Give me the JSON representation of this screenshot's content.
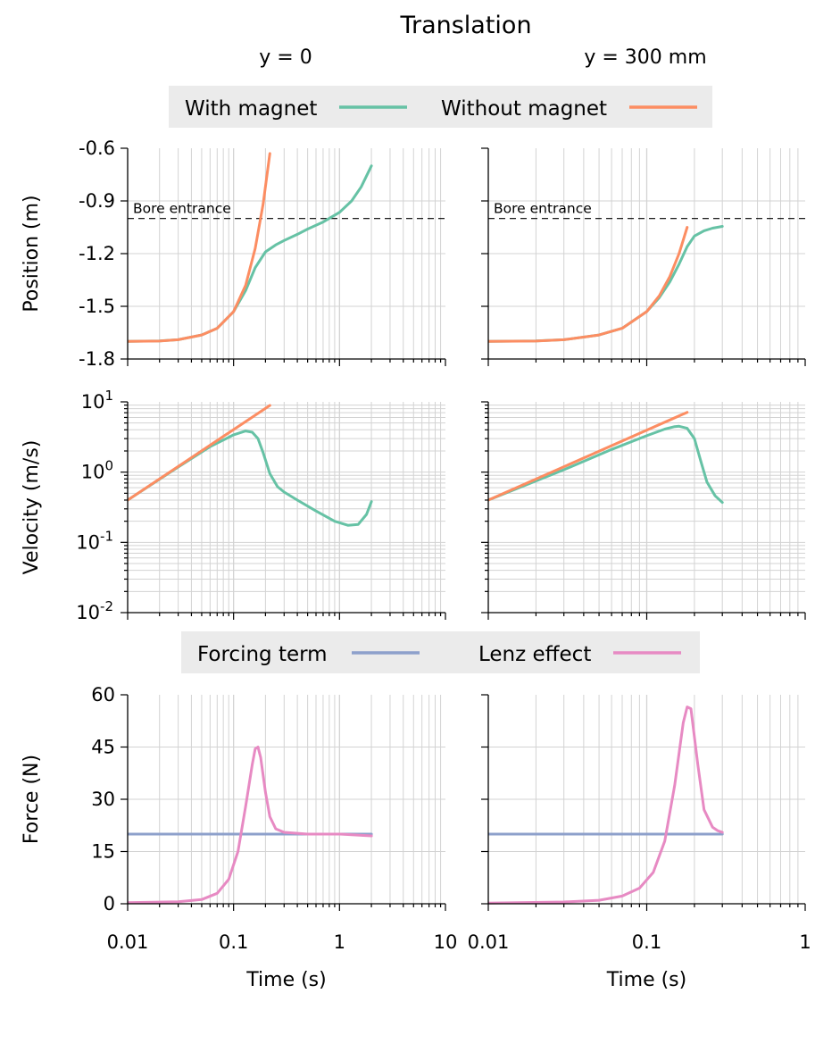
{
  "figure": {
    "title": "Translation",
    "column_titles": [
      "y = 0",
      "y = 300 mm"
    ],
    "legend_top": {
      "with_magnet": "With magnet",
      "without_magnet": "Without magnet"
    },
    "legend_bottom": {
      "forcing": "Forcing term",
      "lenz": "Lenz effect"
    },
    "colors": {
      "with_magnet": "#66c2a5",
      "without_magnet": "#fc8d62",
      "forcing": "#8da0cb",
      "lenz": "#e78ac3",
      "grid": "#d3d3d3",
      "legend_bg": "#ebebeb"
    }
  },
  "chart_data": [
    {
      "type": "line",
      "row": "position",
      "column": "y = 0",
      "xscale": "log",
      "xlim": [
        0.01,
        10
      ],
      "ylim": [
        -1.8,
        -0.6
      ],
      "yticks": [
        "-0.6",
        "-0.9",
        "-1.2",
        "-1.5",
        "-1.8"
      ],
      "ylabel": "Position (m)",
      "grid": true,
      "annotation": {
        "text": "Bore entrance",
        "y": -1.0,
        "style": "dashed"
      },
      "series": [
        {
          "name": "With magnet",
          "x": [
            0.01,
            0.02,
            0.03,
            0.05,
            0.07,
            0.1,
            0.13,
            0.16,
            0.2,
            0.25,
            0.3,
            0.4,
            0.5,
            0.7,
            1.0,
            1.3,
            1.6,
            2.0
          ],
          "y": [
            -1.7,
            -1.697,
            -1.69,
            -1.663,
            -1.625,
            -1.53,
            -1.41,
            -1.28,
            -1.19,
            -1.15,
            -1.125,
            -1.09,
            -1.06,
            -1.02,
            -0.965,
            -0.9,
            -0.82,
            -0.7
          ]
        },
        {
          "name": "Without magnet",
          "x": [
            0.01,
            0.02,
            0.03,
            0.05,
            0.07,
            0.1,
            0.13,
            0.16,
            0.19,
            0.22
          ],
          "y": [
            -1.7,
            -1.698,
            -1.69,
            -1.663,
            -1.625,
            -1.53,
            -1.38,
            -1.17,
            -0.92,
            -0.63
          ]
        }
      ]
    },
    {
      "type": "line",
      "row": "position",
      "column": "y = 300 mm",
      "xscale": "log",
      "xlim": [
        0.01,
        1
      ],
      "ylim": [
        -1.8,
        -0.6
      ],
      "grid": true,
      "annotation": {
        "text": "Bore entrance",
        "y": -1.0,
        "style": "dashed"
      },
      "series": [
        {
          "name": "With magnet",
          "x": [
            0.01,
            0.02,
            0.03,
            0.05,
            0.07,
            0.1,
            0.12,
            0.14,
            0.16,
            0.18,
            0.2,
            0.23,
            0.26,
            0.3
          ],
          "y": [
            -1.7,
            -1.697,
            -1.69,
            -1.663,
            -1.625,
            -1.53,
            -1.45,
            -1.36,
            -1.26,
            -1.16,
            -1.1,
            -1.07,
            -1.055,
            -1.045
          ]
        },
        {
          "name": "Without magnet",
          "x": [
            0.01,
            0.02,
            0.03,
            0.05,
            0.07,
            0.1,
            0.12,
            0.14,
            0.16,
            0.18
          ],
          "y": [
            -1.7,
            -1.698,
            -1.69,
            -1.663,
            -1.625,
            -1.53,
            -1.44,
            -1.33,
            -1.2,
            -1.05
          ]
        }
      ]
    },
    {
      "type": "line",
      "row": "velocity",
      "column": "y = 0",
      "xscale": "log",
      "xlim": [
        0.01,
        10
      ],
      "yscale": "log",
      "ylim": [
        0.01,
        10
      ],
      "ylabel": "Velocity (m/s)",
      "grid": true,
      "series": [
        {
          "name": "With magnet",
          "x": [
            0.01,
            0.03,
            0.06,
            0.1,
            0.13,
            0.15,
            0.17,
            0.19,
            0.22,
            0.26,
            0.3,
            0.4,
            0.6,
            0.9,
            1.2,
            1.5,
            1.8,
            2.0
          ],
          "y": [
            0.4,
            1.18,
            2.3,
            3.4,
            3.85,
            3.7,
            3.0,
            1.9,
            0.95,
            0.62,
            0.52,
            0.4,
            0.28,
            0.2,
            0.175,
            0.18,
            0.25,
            0.38
          ]
        },
        {
          "name": "Without magnet",
          "x": [
            0.01,
            0.22
          ],
          "y": [
            0.4,
            8.9
          ]
        }
      ]
    },
    {
      "type": "line",
      "row": "velocity",
      "column": "y = 300 mm",
      "xscale": "log",
      "xlim": [
        0.01,
        1
      ],
      "yscale": "log",
      "ylim": [
        0.01,
        10
      ],
      "grid": true,
      "series": [
        {
          "name": "With magnet",
          "x": [
            0.01,
            0.03,
            0.06,
            0.1,
            0.13,
            0.15,
            0.16,
            0.18,
            0.2,
            0.22,
            0.24,
            0.27,
            0.3
          ],
          "y": [
            0.4,
            1.08,
            2.1,
            3.3,
            4.1,
            4.45,
            4.5,
            4.2,
            3.0,
            1.4,
            0.72,
            0.46,
            0.37
          ]
        },
        {
          "name": "Without magnet",
          "x": [
            0.01,
            0.18
          ],
          "y": [
            0.4,
            7.1
          ]
        }
      ]
    },
    {
      "type": "line",
      "row": "force",
      "column": "y = 0",
      "xscale": "log",
      "xlim": [
        0.01,
        10
      ],
      "xticks": [
        "0.01",
        "0.1",
        "1",
        "10"
      ],
      "ylim": [
        0,
        60
      ],
      "yticks": [
        "60",
        "45",
        "30",
        "15",
        "0"
      ],
      "ylabel": "Force (N)",
      "xlabel": "Time (s)",
      "grid": true,
      "series": [
        {
          "name": "Forcing term",
          "x": [
            0.01,
            2.0
          ],
          "y": [
            20,
            20
          ]
        },
        {
          "name": "Lenz effect",
          "x": [
            0.01,
            0.03,
            0.05,
            0.07,
            0.09,
            0.11,
            0.13,
            0.15,
            0.16,
            0.17,
            0.18,
            0.2,
            0.22,
            0.25,
            0.3,
            0.5,
            1.0,
            2.0
          ],
          "y": [
            0.3,
            0.6,
            1.2,
            3.0,
            7.0,
            15.0,
            28.0,
            40.0,
            44.5,
            45.0,
            42.0,
            32.0,
            25.0,
            21.5,
            20.5,
            20.0,
            20.0,
            19.5
          ]
        }
      ]
    },
    {
      "type": "line",
      "row": "force",
      "column": "y = 300 mm",
      "xscale": "log",
      "xlim": [
        0.01,
        1
      ],
      "xticks": [
        "0.01",
        "0.1",
        "1"
      ],
      "ylim": [
        0,
        60
      ],
      "xlabel": "Time (s)",
      "grid": true,
      "series": [
        {
          "name": "Forcing term",
          "x": [
            0.01,
            0.3
          ],
          "y": [
            20,
            20
          ]
        },
        {
          "name": "Lenz effect",
          "x": [
            0.01,
            0.03,
            0.05,
            0.07,
            0.09,
            0.11,
            0.13,
            0.15,
            0.17,
            0.18,
            0.19,
            0.21,
            0.23,
            0.26,
            0.28,
            0.3
          ],
          "y": [
            0.2,
            0.5,
            1.0,
            2.2,
            4.5,
            9.0,
            18.0,
            34.0,
            52.0,
            56.5,
            56.0,
            40.0,
            27.0,
            22.0,
            21.0,
            20.5
          ]
        }
      ]
    }
  ]
}
